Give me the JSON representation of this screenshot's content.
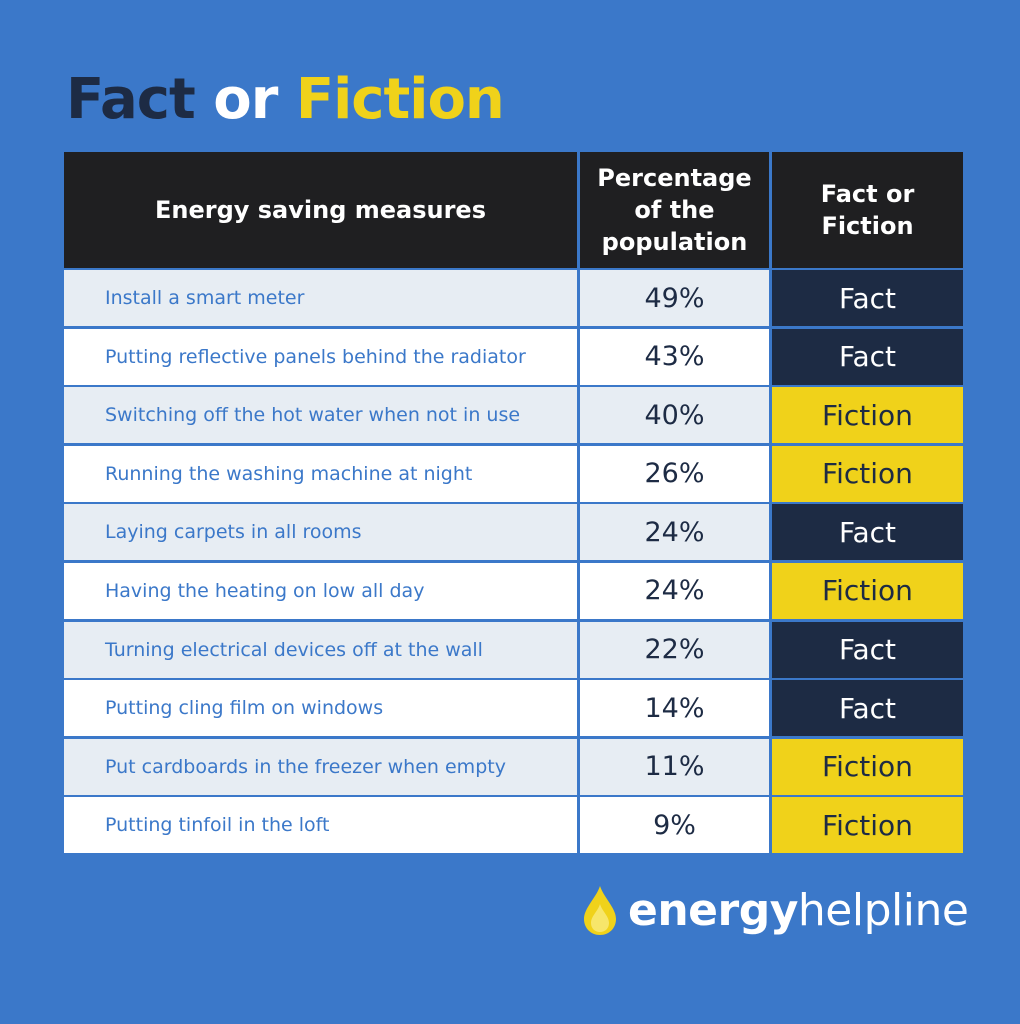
{
  "title": {
    "part1": "Fact",
    "part2": "or",
    "part3": "Fiction"
  },
  "table": {
    "headers": {
      "measure": "Energy saving measures",
      "percentage_lines": [
        "Percentage",
        "of the",
        "population"
      ],
      "verdict_lines": [
        "Fact or",
        "Fiction"
      ]
    },
    "rows": [
      {
        "measure": "Install a smart meter",
        "percent": "49%",
        "verdict": "Fact"
      },
      {
        "measure": "Putting reflective panels behind the radiator",
        "percent": "43%",
        "verdict": "Fact"
      },
      {
        "measure": "Switching off the hot water when not in use",
        "percent": "40%",
        "verdict": "Fiction"
      },
      {
        "measure": "Running the washing machine at night",
        "percent": "26%",
        "verdict": "Fiction"
      },
      {
        "measure": "Laying carpets in all rooms",
        "percent": "24%",
        "verdict": "Fact"
      },
      {
        "measure": "Having the heating on low all day",
        "percent": "24%",
        "verdict": "Fiction"
      },
      {
        "measure": "Turning electrical devices off at the wall",
        "percent": "22%",
        "verdict": "Fact"
      },
      {
        "measure": "Putting cling film on windows",
        "percent": "14%",
        "verdict": "Fact"
      },
      {
        "measure": "Put cardboards in the freezer when empty",
        "percent": "11%",
        "verdict": "Fiction"
      },
      {
        "measure": "Putting tinfoil in the loft",
        "percent": "9%",
        "verdict": "Fiction"
      }
    ]
  },
  "logo": {
    "bold": "energy",
    "light": "helpline",
    "icon": "flame-drop-icon"
  },
  "colors": {
    "background": "#3b78c9",
    "navy": "#1d2b44",
    "yellow": "#f0d21a",
    "header": "#1f1f21"
  }
}
